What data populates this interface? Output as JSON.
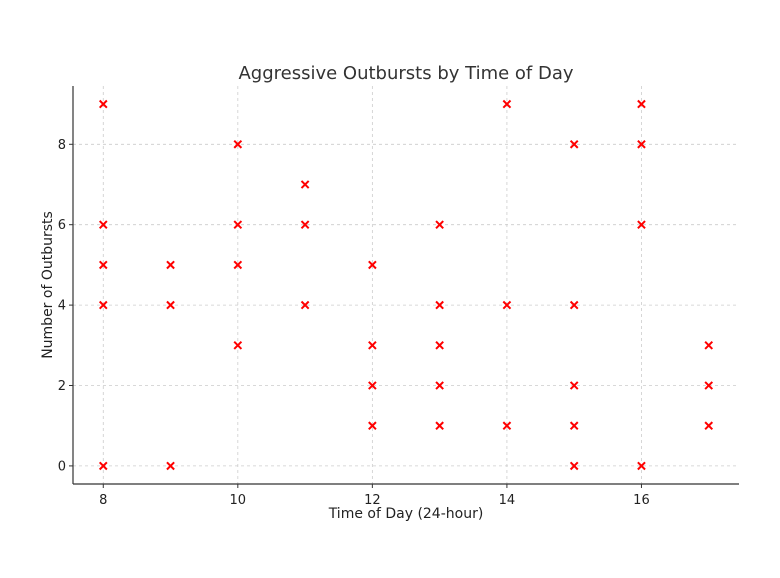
{
  "chart_data": {
    "type": "scatter",
    "title": "Aggressive Outbursts by Time of Day",
    "xlabel": "Time of Day (24-hour)",
    "ylabel": "Number of Outbursts",
    "xlim": [
      7.55,
      17.45
    ],
    "ylim": [
      -0.45,
      9.45
    ],
    "xticks": [
      8,
      10,
      12,
      14,
      16
    ],
    "yticks": [
      0,
      2,
      4,
      6,
      8
    ],
    "grid": true,
    "marker": "x",
    "marker_color": "#ff0000",
    "points": [
      [
        8,
        9
      ],
      [
        8,
        6
      ],
      [
        8,
        5
      ],
      [
        8,
        4
      ],
      [
        8,
        0
      ],
      [
        9,
        5
      ],
      [
        9,
        4
      ],
      [
        9,
        0
      ],
      [
        10,
        8
      ],
      [
        10,
        6
      ],
      [
        10,
        5
      ],
      [
        10,
        3
      ],
      [
        11,
        7
      ],
      [
        11,
        6
      ],
      [
        11,
        4
      ],
      [
        12,
        5
      ],
      [
        12,
        3
      ],
      [
        12,
        2
      ],
      [
        12,
        1
      ],
      [
        13,
        6
      ],
      [
        13,
        4
      ],
      [
        13,
        3
      ],
      [
        13,
        2
      ],
      [
        13,
        1
      ],
      [
        14,
        9
      ],
      [
        14,
        4
      ],
      [
        14,
        1
      ],
      [
        15,
        8
      ],
      [
        15,
        4
      ],
      [
        15,
        2
      ],
      [
        15,
        1
      ],
      [
        15,
        0
      ],
      [
        16,
        9
      ],
      [
        16,
        8
      ],
      [
        16,
        6
      ],
      [
        16,
        0
      ],
      [
        17,
        3
      ],
      [
        17,
        2
      ],
      [
        17,
        1
      ]
    ]
  }
}
